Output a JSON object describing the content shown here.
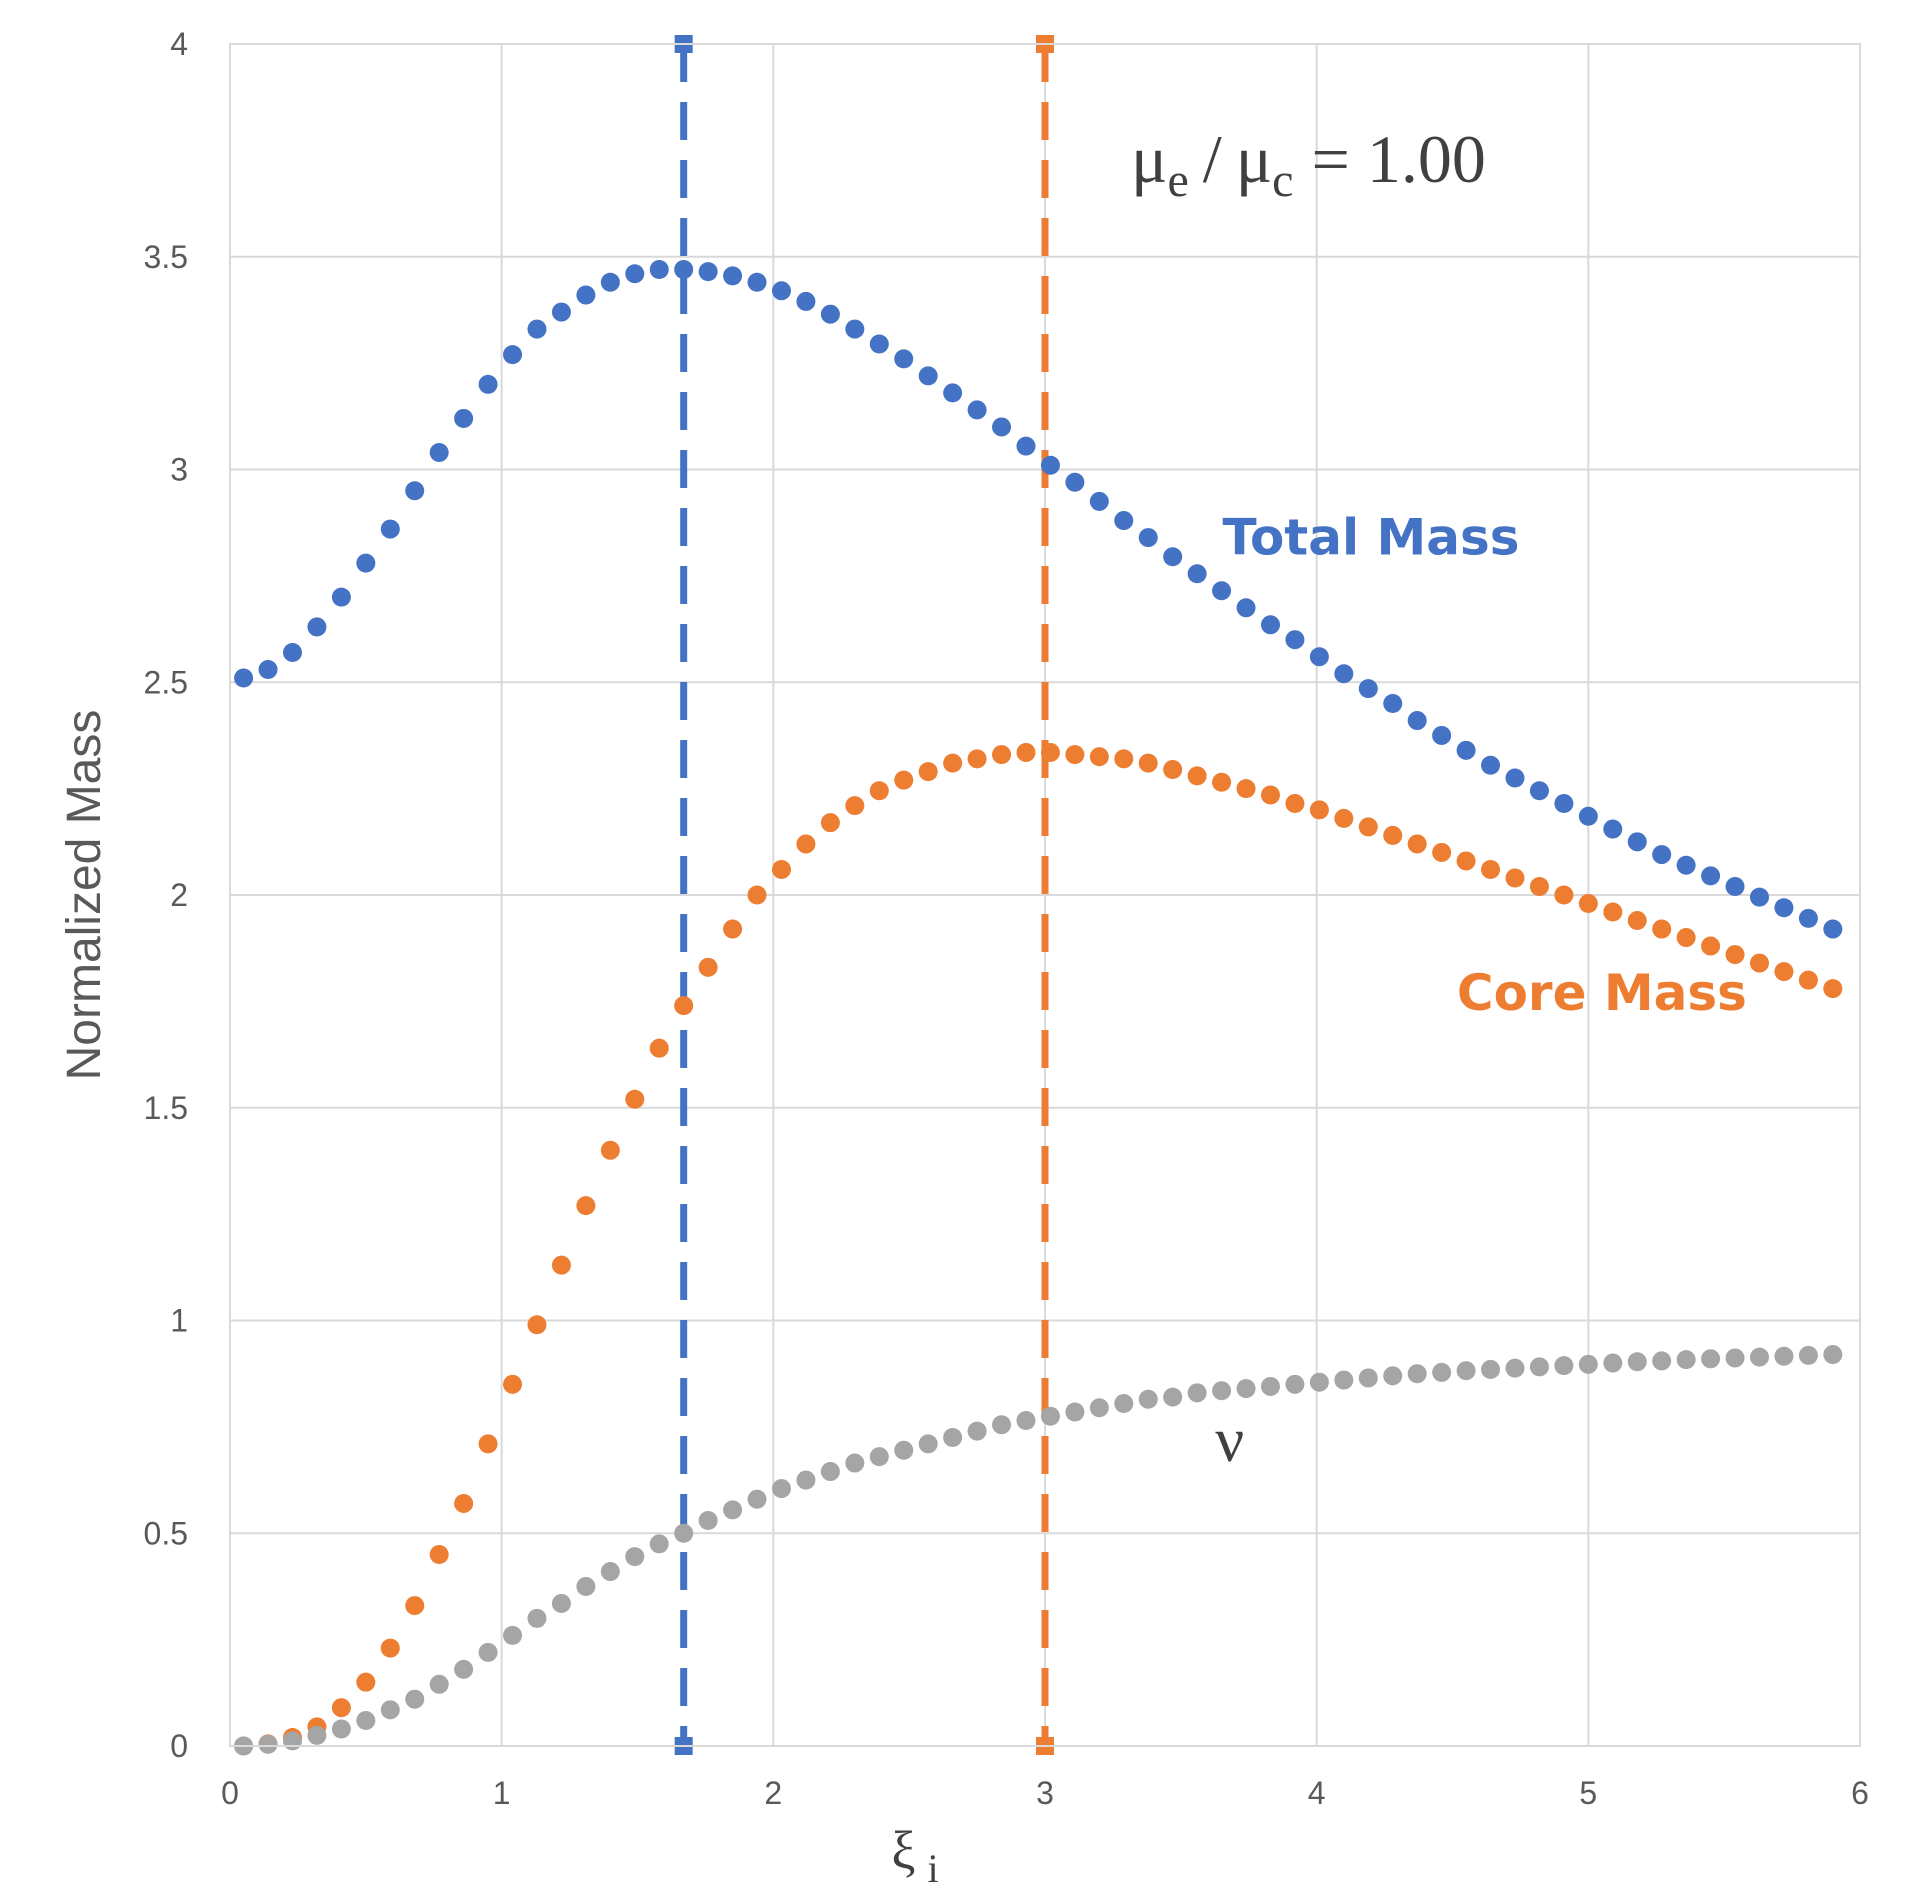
{
  "chart_data": {
    "type": "scatter",
    "title": "",
    "xlabel": "ξ",
    "xlabel_sub": "i",
    "ylabel": "Normalized Mass",
    "xlim": [
      0,
      6
    ],
    "ylim": [
      0,
      4
    ],
    "x_ticks": [
      "0",
      "1",
      "2",
      "3",
      "4",
      "5",
      "6"
    ],
    "y_ticks": [
      "0",
      "0.5",
      "1",
      "1.5",
      "2",
      "2.5",
      "3",
      "3.5",
      "4"
    ],
    "grid": true,
    "annotation": {
      "mu_e": "μ",
      "mu_e_sub": "e",
      "slash": "/",
      "mu_c": "μ",
      "mu_c_sub": "c",
      "equals_value": "= 1.00"
    },
    "vertical_lines": [
      {
        "x": 1.67,
        "color": "#4472C4",
        "y_range": [
          0,
          4
        ]
      },
      {
        "x": 3.0,
        "color": "#ED7D31",
        "y_range": [
          0,
          4
        ]
      }
    ],
    "series": [
      {
        "name": "Total Mass",
        "color": "#4472C4",
        "label_anchor": {
          "x": 4.2,
          "y": 2.8
        },
        "x": [
          0.05,
          0.14,
          0.23,
          0.32,
          0.41,
          0.5,
          0.59,
          0.68,
          0.77,
          0.86,
          0.95,
          1.04,
          1.13,
          1.22,
          1.31,
          1.4,
          1.49,
          1.58,
          1.67,
          1.76,
          1.85,
          1.94,
          2.03,
          2.12,
          2.21,
          2.3,
          2.39,
          2.48,
          2.57,
          2.66,
          2.75,
          2.84,
          2.93,
          3.02,
          3.11,
          3.2,
          3.29,
          3.38,
          3.47,
          3.56,
          3.65,
          3.74,
          3.83,
          3.92,
          4.01,
          4.1,
          4.19,
          4.28,
          4.37,
          4.46,
          4.55,
          4.64,
          4.73,
          4.82,
          4.91,
          5.0,
          5.09,
          5.18,
          5.27,
          5.36,
          5.45,
          5.54,
          5.63,
          5.72,
          5.81,
          5.9
        ],
        "y": [
          2.51,
          2.53,
          2.57,
          2.63,
          2.7,
          2.78,
          2.86,
          2.95,
          3.04,
          3.12,
          3.2,
          3.27,
          3.33,
          3.37,
          3.41,
          3.44,
          3.46,
          3.47,
          3.47,
          3.465,
          3.455,
          3.44,
          3.42,
          3.395,
          3.365,
          3.33,
          3.295,
          3.26,
          3.22,
          3.18,
          3.14,
          3.1,
          3.055,
          3.01,
          2.97,
          2.925,
          2.88,
          2.84,
          2.795,
          2.755,
          2.715,
          2.675,
          2.635,
          2.6,
          2.56,
          2.52,
          2.485,
          2.45,
          2.41,
          2.375,
          2.34,
          2.305,
          2.275,
          2.245,
          2.215,
          2.185,
          2.155,
          2.125,
          2.095,
          2.07,
          2.045,
          2.02,
          1.995,
          1.97,
          1.945,
          1.92
        ]
      },
      {
        "name": "Core Mass",
        "color": "#ED7D31",
        "label_anchor": {
          "x": 5.05,
          "y": 1.73
        },
        "x": [
          0.05,
          0.14,
          0.23,
          0.32,
          0.41,
          0.5,
          0.59,
          0.68,
          0.77,
          0.86,
          0.95,
          1.04,
          1.13,
          1.22,
          1.31,
          1.4,
          1.49,
          1.58,
          1.67,
          1.76,
          1.85,
          1.94,
          2.03,
          2.12,
          2.21,
          2.3,
          2.39,
          2.48,
          2.57,
          2.66,
          2.75,
          2.84,
          2.93,
          3.02,
          3.11,
          3.2,
          3.29,
          3.38,
          3.47,
          3.56,
          3.65,
          3.74,
          3.83,
          3.92,
          4.01,
          4.1,
          4.19,
          4.28,
          4.37,
          4.46,
          4.55,
          4.64,
          4.73,
          4.82,
          4.91,
          5.0,
          5.09,
          5.18,
          5.27,
          5.36,
          5.45,
          5.54,
          5.63,
          5.72,
          5.81,
          5.9
        ],
        "y": [
          0.0,
          0.005,
          0.02,
          0.045,
          0.09,
          0.15,
          0.23,
          0.33,
          0.45,
          0.57,
          0.71,
          0.85,
          0.99,
          1.13,
          1.27,
          1.4,
          1.52,
          1.64,
          1.74,
          1.83,
          1.92,
          2.0,
          2.06,
          2.12,
          2.17,
          2.21,
          2.245,
          2.27,
          2.29,
          2.31,
          2.32,
          2.33,
          2.335,
          2.335,
          2.33,
          2.325,
          2.32,
          2.31,
          2.295,
          2.28,
          2.265,
          2.25,
          2.235,
          2.215,
          2.2,
          2.18,
          2.16,
          2.14,
          2.12,
          2.1,
          2.08,
          2.06,
          2.04,
          2.02,
          2.0,
          1.98,
          1.96,
          1.94,
          1.92,
          1.9,
          1.88,
          1.86,
          1.84,
          1.82,
          1.8,
          1.78
        ]
      },
      {
        "name": "ν",
        "color": "#A5A5A5",
        "label_anchor": {
          "x": 3.68,
          "y": 0.67
        },
        "x": [
          0.05,
          0.14,
          0.23,
          0.32,
          0.41,
          0.5,
          0.59,
          0.68,
          0.77,
          0.86,
          0.95,
          1.04,
          1.13,
          1.22,
          1.31,
          1.4,
          1.49,
          1.58,
          1.67,
          1.76,
          1.85,
          1.94,
          2.03,
          2.12,
          2.21,
          2.3,
          2.39,
          2.48,
          2.57,
          2.66,
          2.75,
          2.84,
          2.93,
          3.02,
          3.11,
          3.2,
          3.29,
          3.38,
          3.47,
          3.56,
          3.65,
          3.74,
          3.83,
          3.92,
          4.01,
          4.1,
          4.19,
          4.28,
          4.37,
          4.46,
          4.55,
          4.64,
          4.73,
          4.82,
          4.91,
          5.0,
          5.09,
          5.18,
          5.27,
          5.36,
          5.45,
          5.54,
          5.63,
          5.72,
          5.81,
          5.9
        ],
        "y": [
          0.0,
          0.004,
          0.012,
          0.025,
          0.04,
          0.06,
          0.085,
          0.11,
          0.145,
          0.18,
          0.22,
          0.26,
          0.3,
          0.335,
          0.375,
          0.41,
          0.445,
          0.475,
          0.5,
          0.53,
          0.555,
          0.58,
          0.605,
          0.625,
          0.645,
          0.665,
          0.68,
          0.695,
          0.71,
          0.725,
          0.74,
          0.755,
          0.765,
          0.775,
          0.785,
          0.795,
          0.805,
          0.815,
          0.82,
          0.83,
          0.835,
          0.84,
          0.845,
          0.85,
          0.855,
          0.86,
          0.865,
          0.87,
          0.875,
          0.878,
          0.882,
          0.885,
          0.888,
          0.891,
          0.894,
          0.897,
          0.9,
          0.903,
          0.905,
          0.908,
          0.91,
          0.912,
          0.914,
          0.916,
          0.918,
          0.92
        ]
      }
    ]
  }
}
